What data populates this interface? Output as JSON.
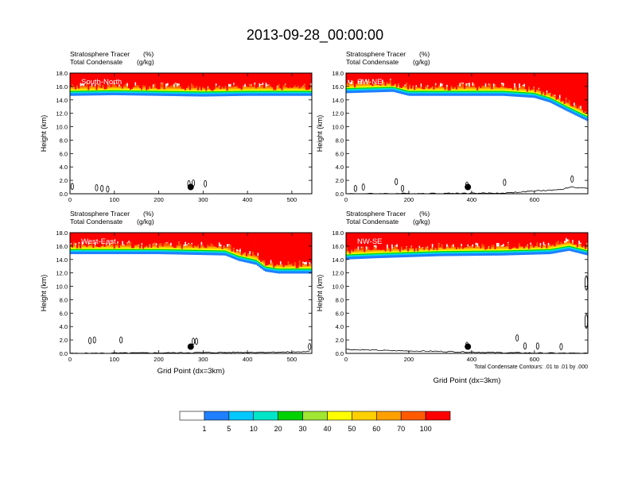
{
  "title": "2013-09-28_00:00:00",
  "colors": {
    "levels": [
      "#ffffff",
      "#1f7fff",
      "#00c8ff",
      "#00e5c8",
      "#00d200",
      "#a0e632",
      "#ffff00",
      "#ffd000",
      "#ffa000",
      "#ff5a00",
      "#ff0000"
    ],
    "contour": "#000000",
    "terrain": "#000000",
    "marker": "#000000"
  },
  "colorbar": {
    "labels": [
      "1",
      "5",
      "10",
      "20",
      "30",
      "40",
      "50",
      "60",
      "70",
      "100"
    ]
  },
  "contour_note": "Total Condensate Contours: .01 to .01 by .000",
  "chart_data": [
    {
      "type": "heatmap",
      "panel_label": "South-North",
      "subtitle_line1": "Stratosphere Tracer",
      "subtitle_unit1": "(%)",
      "subtitle_line2": "Total Condensate",
      "subtitle_unit2": "(g/kg)",
      "ylabel": "Height (km)",
      "xlabel": "",
      "xlim": [
        0,
        545
      ],
      "ylim": [
        0,
        18
      ],
      "xticks": [
        0,
        100,
        200,
        300,
        400,
        500
      ],
      "yticks": [
        "0.0",
        "2.0",
        "4.0",
        "6.0",
        "8.0",
        "10.0",
        "12.0",
        "14.0",
        "16.0",
        "18.0"
      ],
      "marker_x": 272,
      "tracer_front_height": [
        {
          "x": 0,
          "h": 14.6
        },
        {
          "x": 100,
          "h": 14.7
        },
        {
          "x": 200,
          "h": 14.6
        },
        {
          "x": 300,
          "h": 14.5
        },
        {
          "x": 400,
          "h": 14.6
        },
        {
          "x": 545,
          "h": 14.6
        }
      ],
      "terrain": [],
      "contour_cells": [
        {
          "x": 5,
          "h": 1.1
        },
        {
          "x": 60,
          "h": 0.9
        },
        {
          "x": 72,
          "h": 0.8
        },
        {
          "x": 85,
          "h": 0.7
        },
        {
          "x": 268,
          "h": 1.5
        },
        {
          "x": 278,
          "h": 1.6
        },
        {
          "x": 305,
          "h": 1.5
        }
      ]
    },
    {
      "type": "heatmap",
      "panel_label": "SW-NE",
      "subtitle_line1": "Stratosphere Tracer",
      "subtitle_unit1": "(%)",
      "subtitle_line2": "Total Condensate",
      "subtitle_unit2": "(g/kg)",
      "ylabel": "Height (km)",
      "xlabel": "",
      "xlim": [
        0,
        770
      ],
      "ylim": [
        0,
        18
      ],
      "xticks": [
        0,
        200,
        400,
        600
      ],
      "yticks": [
        "0.0",
        "2.0",
        "4.0",
        "6.0",
        "8.0",
        "10.0",
        "12.0",
        "14.0",
        "16.0",
        "18.0"
      ],
      "marker_x": 388,
      "tracer_front_height": [
        {
          "x": 0,
          "h": 15.0
        },
        {
          "x": 150,
          "h": 15.2
        },
        {
          "x": 200,
          "h": 14.6
        },
        {
          "x": 400,
          "h": 14.6
        },
        {
          "x": 500,
          "h": 14.6
        },
        {
          "x": 600,
          "h": 14.3
        },
        {
          "x": 650,
          "h": 13.6
        },
        {
          "x": 700,
          "h": 12.4
        },
        {
          "x": 770,
          "h": 10.8
        }
      ],
      "terrain": [
        {
          "x": 0,
          "h": 0.0
        },
        {
          "x": 500,
          "h": 0.1
        },
        {
          "x": 600,
          "h": 0.4
        },
        {
          "x": 680,
          "h": 0.6
        },
        {
          "x": 720,
          "h": 1.0
        },
        {
          "x": 770,
          "h": 0.8
        }
      ],
      "contour_cells": [
        {
          "x": 30,
          "h": 0.8
        },
        {
          "x": 55,
          "h": 1.0
        },
        {
          "x": 160,
          "h": 1.8
        },
        {
          "x": 180,
          "h": 0.8
        },
        {
          "x": 385,
          "h": 1.3
        },
        {
          "x": 505,
          "h": 1.7
        },
        {
          "x": 720,
          "h": 2.2
        }
      ]
    },
    {
      "type": "heatmap",
      "panel_label": "West-East",
      "subtitle_line1": "Stratosphere Tracer",
      "subtitle_unit1": "(%)",
      "subtitle_line2": "Total Condensate",
      "subtitle_unit2": "(g/kg)",
      "ylabel": "Height (km)",
      "xlabel": "Grid Point (dx=3km)",
      "xlim": [
        0,
        545
      ],
      "ylim": [
        0,
        18
      ],
      "xticks": [
        0,
        100,
        200,
        300,
        400,
        500
      ],
      "yticks": [
        "0.0",
        "2.0",
        "4.0",
        "6.0",
        "8.0",
        "10.0",
        "12.0",
        "14.0",
        "16.0",
        "18.0"
      ],
      "marker_x": 272,
      "tracer_front_height": [
        {
          "x": 0,
          "h": 14.8
        },
        {
          "x": 200,
          "h": 14.8
        },
        {
          "x": 350,
          "h": 14.6
        },
        {
          "x": 380,
          "h": 13.8
        },
        {
          "x": 420,
          "h": 13.2
        },
        {
          "x": 440,
          "h": 12.2
        },
        {
          "x": 470,
          "h": 11.9
        },
        {
          "x": 545,
          "h": 11.9
        }
      ],
      "terrain": [
        {
          "x": 0,
          "h": 0.0
        },
        {
          "x": 500,
          "h": 0.2
        },
        {
          "x": 545,
          "h": 0.3
        }
      ],
      "contour_cells": [
        {
          "x": 45,
          "h": 1.9
        },
        {
          "x": 55,
          "h": 2.0
        },
        {
          "x": 115,
          "h": 2.0
        },
        {
          "x": 278,
          "h": 1.8
        },
        {
          "x": 285,
          "h": 1.8
        },
        {
          "x": 540,
          "h": 1.0
        }
      ]
    },
    {
      "type": "heatmap",
      "panel_label": "NW-SE",
      "subtitle_line1": "Stratosphere Tracer",
      "subtitle_unit1": "(%)",
      "subtitle_line2": "Total Condensate",
      "subtitle_unit2": "(g/kg)",
      "ylabel": "Height (km)",
      "xlabel": "Grid Point (dx=3km)",
      "xlim": [
        0,
        770
      ],
      "ylim": [
        0,
        18
      ],
      "xticks": [
        0,
        200,
        400,
        600
      ],
      "yticks": [
        "0.0",
        "2.0",
        "4.0",
        "6.0",
        "8.0",
        "10.0",
        "12.0",
        "14.0",
        "16.0",
        "18.0"
      ],
      "marker_x": 388,
      "tracer_front_height": [
        {
          "x": 0,
          "h": 14.0
        },
        {
          "x": 100,
          "h": 14.2
        },
        {
          "x": 300,
          "h": 14.5
        },
        {
          "x": 500,
          "h": 14.6
        },
        {
          "x": 650,
          "h": 14.8
        },
        {
          "x": 710,
          "h": 15.3
        },
        {
          "x": 770,
          "h": 14.6
        }
      ],
      "terrain": [
        {
          "x": 0,
          "h": 0.6
        },
        {
          "x": 150,
          "h": 0.4
        },
        {
          "x": 300,
          "h": 0.3
        },
        {
          "x": 500,
          "h": 0.1
        },
        {
          "x": 770,
          "h": 0.0
        }
      ],
      "contour_cells": [
        {
          "x": 385,
          "h": 1.2
        },
        {
          "x": 545,
          "h": 2.3
        },
        {
          "x": 570,
          "h": 1.1
        },
        {
          "x": 610,
          "h": 1.1
        },
        {
          "x": 685,
          "h": 1.0
        },
        {
          "x": 765,
          "h": 10.5
        },
        {
          "x": 765,
          "h": 4.8
        }
      ]
    }
  ]
}
